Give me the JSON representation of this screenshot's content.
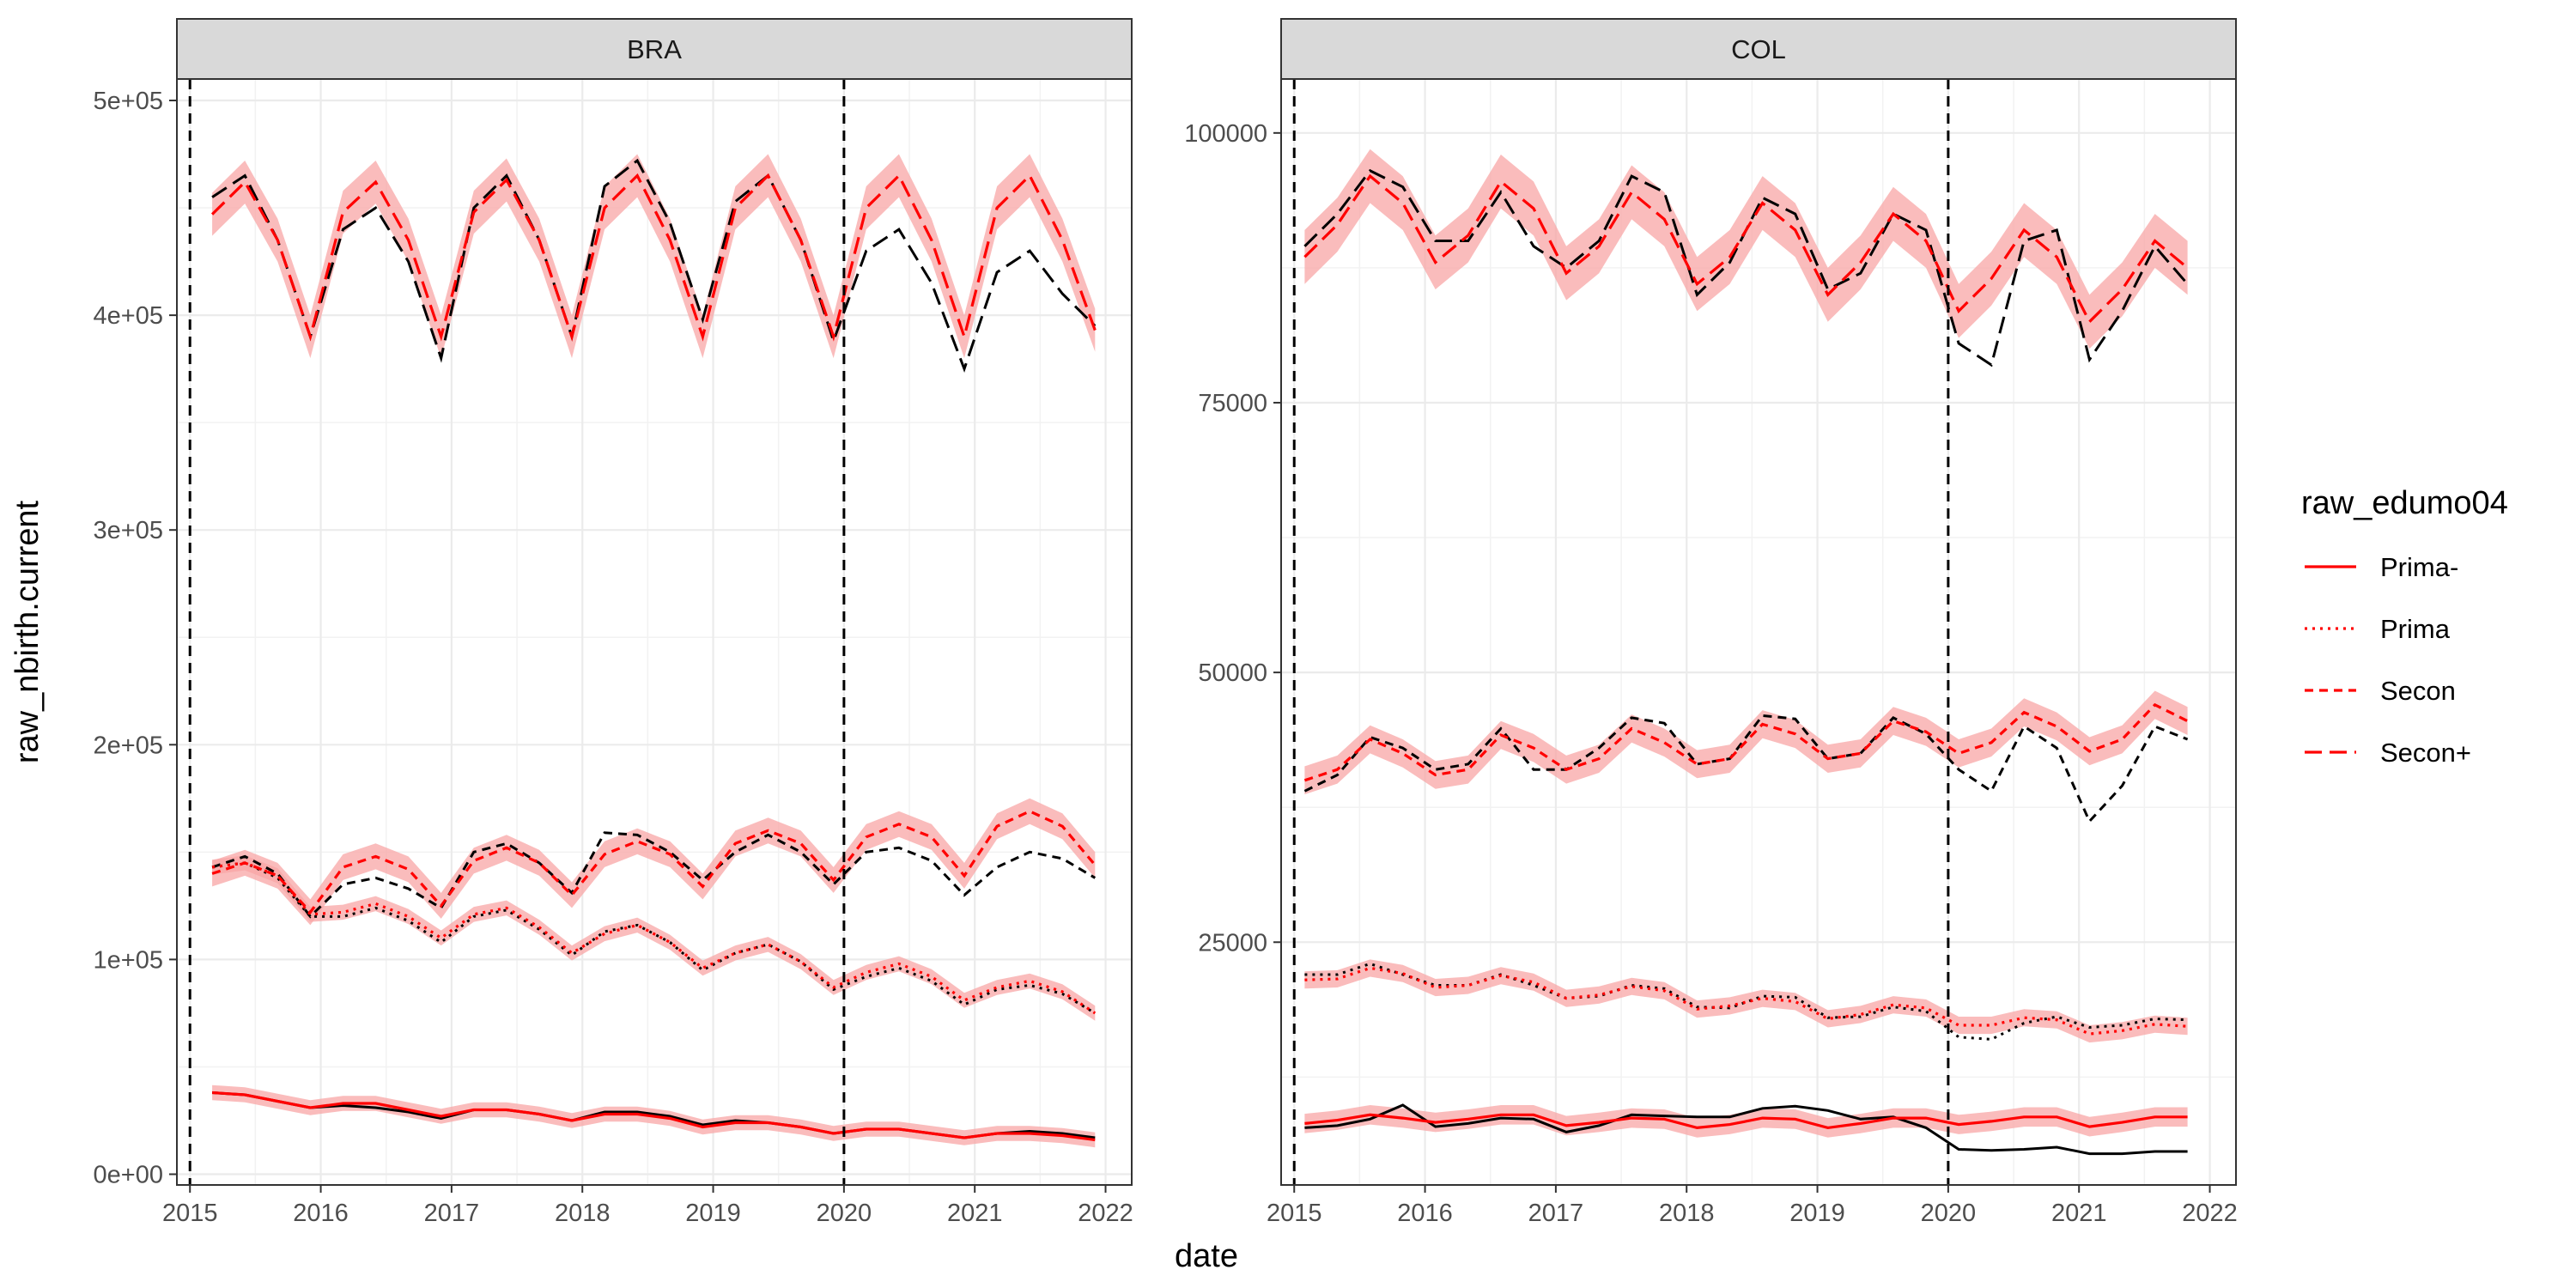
{
  "chart_data": {
    "type": "line",
    "xlabel": "date",
    "ylabel": "raw_nbirth.current",
    "x_ticks": [
      "2015",
      "2016",
      "2017",
      "2018",
      "2019",
      "2020",
      "2021",
      "2022"
    ],
    "x_tick_values": [
      2015,
      2016,
      2017,
      2018,
      2019,
      2020,
      2021,
      2022
    ],
    "xlim": [
      2014.9,
      2022.2
    ],
    "vlines": [
      2015.0,
      2020.0
    ],
    "grid": true,
    "legend": {
      "title": "raw_edumo04",
      "position": "right",
      "entries": [
        {
          "label": "Prima-",
          "dash": "solid"
        },
        {
          "label": "Prima",
          "dash": "dotted"
        },
        {
          "label": "Secon",
          "dash": "dashed"
        },
        {
          "label": "Secon+",
          "dash": "longdash"
        }
      ]
    },
    "colors": {
      "fitted": "#ff0000",
      "ribbon": "#f8a5a5",
      "observed": "#000000",
      "vline": "#000000"
    },
    "panels": [
      {
        "strip": "BRA",
        "ylim": [
          -5000,
          510000
        ],
        "y_ticks": [
          0,
          100000,
          200000,
          300000,
          400000,
          500000
        ],
        "y_tick_labels": [
          "0e+00",
          "1e+05",
          "2e+05",
          "3e+05",
          "4e+05",
          "5e+05"
        ],
        "x": [
          2015.17,
          2015.42,
          2015.67,
          2015.92,
          2016.17,
          2016.42,
          2016.67,
          2016.92,
          2017.17,
          2017.42,
          2017.67,
          2017.92,
          2018.17,
          2018.42,
          2018.67,
          2018.92,
          2019.17,
          2019.42,
          2019.67,
          2019.92,
          2020.17,
          2020.42,
          2020.67,
          2020.92,
          2021.17,
          2021.42,
          2021.67,
          2021.92
        ],
        "series": [
          {
            "name": "Prima-",
            "dash": "solid",
            "observed": [
              38000,
              37000,
              34000,
              31000,
              32000,
              31000,
              29000,
              26000,
              30000,
              30000,
              28000,
              25000,
              29000,
              29000,
              27000,
              23000,
              25000,
              24000,
              22000,
              19000,
              21000,
              21000,
              19000,
              17000,
              19000,
              20000,
              19000,
              17000
            ],
            "fitted": [
              38000,
              37000,
              34000,
              31000,
              33000,
              33000,
              30000,
              27000,
              30000,
              30000,
              28000,
              25000,
              28000,
              28000,
              26000,
              22000,
              24000,
              24000,
              22000,
              19000,
              21000,
              21000,
              19000,
              17000,
              19000,
              19000,
              18000,
              16000
            ],
            "band": 3500
          },
          {
            "name": "Prima",
            "dash": "dotted",
            "observed": [
              143000,
              145000,
              138000,
              120000,
              120000,
              124000,
              118000,
              108000,
              120000,
              123000,
              114000,
              102000,
              113000,
              116000,
              108000,
              95000,
              103000,
              107000,
              99000,
              86000,
              92000,
              96000,
              90000,
              79000,
              86000,
              88000,
              84000,
              75000
            ],
            "fitted": [
              143000,
              145000,
              139000,
              121000,
              122000,
              126000,
              120000,
              110000,
              121000,
              124000,
              115000,
              103000,
              112000,
              116000,
              108000,
              96000,
              103000,
              107000,
              99000,
              87000,
              94000,
              98000,
              92000,
              81000,
              87000,
              90000,
              85000,
              75000
            ],
            "band": 3500
          },
          {
            "name": "Secon",
            "dash": "dashed",
            "observed": [
              143000,
              148000,
              140000,
              120000,
              135000,
              138000,
              133000,
              124000,
              150000,
              154000,
              145000,
              131000,
              159000,
              158000,
              150000,
              137000,
              150000,
              158000,
              150000,
              135000,
              150000,
              152000,
              146000,
              130000,
              143000,
              150000,
              147000,
              138000
            ],
            "fitted": [
              140000,
              145000,
              139000,
              122000,
              143000,
              148000,
              142000,
              125000,
              146000,
              152000,
              145000,
              130000,
              149000,
              155000,
              149000,
              134000,
              154000,
              160000,
              154000,
              137000,
              157000,
              163000,
              157000,
              139000,
              162000,
              169000,
              162000,
              144000
            ],
            "band": 6000
          },
          {
            "name": "Secon+",
            "dash": "longdash",
            "observed": [
              455000,
              465000,
              435000,
              390000,
              440000,
              450000,
              425000,
              380000,
              450000,
              465000,
              435000,
              390000,
              460000,
              472000,
              443000,
              398000,
              453000,
              465000,
              435000,
              388000,
              430000,
              440000,
              415000,
              375000,
              420000,
              430000,
              410000,
              395000
            ],
            "fitted": [
              447000,
              462000,
              435000,
              390000,
              448000,
              462000,
              435000,
              390000,
              448000,
              463000,
              435000,
              390000,
              450000,
              465000,
              435000,
              390000,
              450000,
              465000,
              435000,
              390000,
              450000,
              465000,
              435000,
              390000,
              450000,
              465000,
              435000,
              393000
            ],
            "band": 10000
          }
        ]
      },
      {
        "strip": "COL",
        "ylim": [
          2500,
          105000
        ],
        "y_ticks": [
          25000,
          50000,
          75000,
          100000
        ],
        "y_tick_labels": [
          "25000",
          "50000",
          "75000",
          "100000"
        ],
        "x": [
          2015.08,
          2015.33,
          2015.58,
          2015.83,
          2016.08,
          2016.33,
          2016.58,
          2016.83,
          2017.08,
          2017.33,
          2017.58,
          2017.83,
          2018.08,
          2018.33,
          2018.58,
          2018.83,
          2019.08,
          2019.33,
          2019.58,
          2019.83,
          2020.08,
          2020.33,
          2020.58,
          2020.83,
          2021.08,
          2021.33,
          2021.58,
          2021.83
        ],
        "series": [
          {
            "name": "Prima-",
            "dash": "solid",
            "observed": [
              7800,
              8000,
              8600,
              9900,
              7900,
              8200,
              8700,
              8600,
              7400,
              8000,
              9000,
              8900,
              8800,
              8800,
              9600,
              9800,
              9400,
              8600,
              8800,
              7800,
              5800,
              5700,
              5800,
              6000,
              5400,
              5400,
              5600,
              5600
            ],
            "fitted": [
              8200,
              8500,
              9000,
              8700,
              8300,
              8600,
              9000,
              9000,
              8000,
              8300,
              8700,
              8600,
              7800,
              8100,
              8700,
              8600,
              7800,
              8200,
              8700,
              8700,
              8100,
              8400,
              8800,
              8800,
              7900,
              8300,
              8800,
              8800
            ],
            "band": 900
          },
          {
            "name": "Prima",
            "dash": "dotted",
            "observed": [
              22000,
              22000,
              23000,
              22000,
              21000,
              21000,
              22000,
              21000,
              19800,
              20000,
              21000,
              20700,
              19000,
              18900,
              20000,
              19900,
              18000,
              18100,
              19000,
              18600,
              16200,
              16000,
              17500,
              18100,
              17100,
              17300,
              17900,
              17800
            ],
            "fitted": [
              21500,
              21600,
              22600,
              22100,
              20800,
              21000,
              21900,
              21300,
              19800,
              20100,
              20900,
              20500,
              18800,
              19100,
              19800,
              19500,
              17900,
              18300,
              19200,
              18900,
              17300,
              17300,
              18000,
              17800,
              16500,
              16800,
              17400,
              17200
            ],
            "band": 800
          },
          {
            "name": "Secon",
            "dash": "dashed",
            "observed": [
              39000,
              40500,
              44000,
              43000,
              41000,
              41500,
              44800,
              41000,
              41000,
              43000,
              45800,
              45300,
              41500,
              42000,
              46000,
              45700,
              42000,
              42500,
              45800,
              44300,
              41000,
              39000,
              45000,
              43000,
              36200,
              39500,
              45000,
              43800
            ],
            "fitted": [
              40000,
              41000,
              43800,
              42500,
              40500,
              41000,
              44200,
              43000,
              41000,
              42000,
              44800,
              43500,
              41500,
              42000,
              45200,
              44300,
              42000,
              42500,
              45500,
              44500,
              42500,
              43500,
              46300,
              45000,
              42700,
              43800,
              47000,
              45500
            ],
            "band": 1300
          },
          {
            "name": "Secon+",
            "dash": "longdash",
            "observed": [
              89500,
              92500,
              96500,
              95000,
              90000,
              90000,
              94500,
              89500,
              87500,
              90000,
              96000,
              94500,
              85000,
              88000,
              94000,
              92500,
              85500,
              87000,
              92500,
              91000,
              80500,
              78500,
              90000,
              91000,
              79000,
              83500,
              89500,
              86000
            ],
            "fitted": [
              88500,
              91500,
              96000,
              93500,
              88000,
              90500,
              95500,
              93000,
              87000,
              89500,
              94500,
              92000,
              86000,
              88500,
              93500,
              91000,
              85000,
              88000,
              92500,
              90000,
              83500,
              86500,
              91000,
              88500,
              82500,
              85500,
              90000,
              87500
            ],
            "band": 2500
          }
        ]
      }
    ]
  }
}
